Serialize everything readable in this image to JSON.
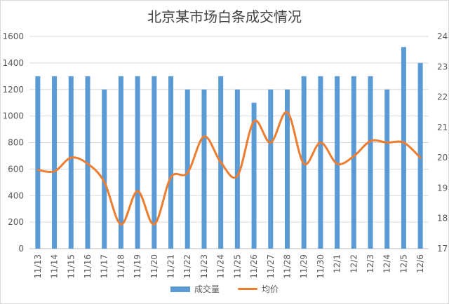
{
  "chart_data": {
    "type": "bar",
    "title": "北京某市场白条成交情况",
    "categories": [
      "11/13",
      "11/14",
      "11/15",
      "11/16",
      "11/17",
      "11/18",
      "11/19",
      "11/20",
      "11/21",
      "11/22",
      "11/23",
      "11/24",
      "11/25",
      "11/26",
      "11/27",
      "11/28",
      "11/29",
      "11/30",
      "12/1",
      "12/2",
      "12/3",
      "12/4",
      "12/5",
      "12/6"
    ],
    "series": [
      {
        "name": "成交量",
        "type": "bar",
        "axis": "left",
        "color": "#5b9bd5",
        "values": [
          1300,
          1300,
          1300,
          1300,
          1200,
          1300,
          1300,
          1300,
          1300,
          1200,
          1200,
          1300,
          1200,
          1100,
          1200,
          1200,
          1300,
          1300,
          1300,
          1300,
          1300,
          1200,
          1520,
          1400
        ]
      },
      {
        "name": "均价",
        "type": "line",
        "axis": "right",
        "color": "#ed7d31",
        "values": [
          19.6,
          19.55,
          20.0,
          19.8,
          19.2,
          17.8,
          18.9,
          17.8,
          19.35,
          19.5,
          20.7,
          19.85,
          19.4,
          21.2,
          20.5,
          21.5,
          19.8,
          20.5,
          19.8,
          20.05,
          20.55,
          20.5,
          20.5,
          20.0
        ]
      }
    ],
    "ylim_left": [
      0,
      1600
    ],
    "yticks_left": [
      "0",
      "200",
      "400",
      "600",
      "800",
      "1000",
      "1200",
      "1400",
      "1600"
    ],
    "ylim_right": [
      17,
      24
    ],
    "yticks_right": [
      "17",
      "18",
      "19",
      "20",
      "21",
      "22",
      "23",
      "24"
    ],
    "grid": true,
    "legend": "bottom"
  }
}
